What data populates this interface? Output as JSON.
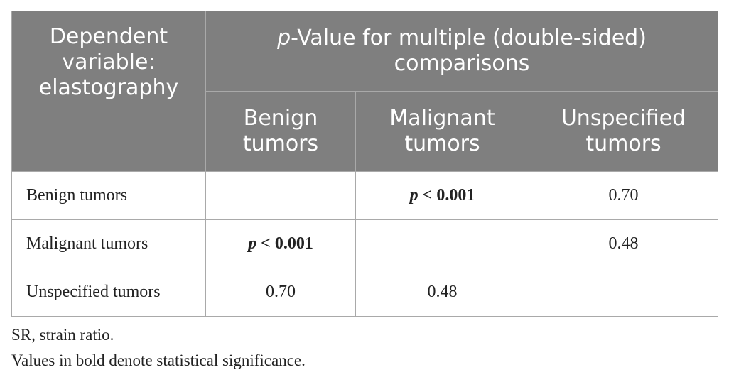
{
  "table": {
    "header": {
      "dependent_label": "Dependent variable: elastography",
      "pvalue_label_italic": "p",
      "pvalue_label_rest": "-Value for multiple (double-sided) comparisons",
      "columns": [
        "Benign tumors",
        "Malignant tumors",
        "Unspecified tumors"
      ]
    },
    "rows": [
      {
        "label": "Benign tumors",
        "cells": [
          "",
          "p < 0.001",
          "0.70"
        ]
      },
      {
        "label": "Malignant tumors",
        "cells": [
          "p < 0.001",
          "",
          "0.48"
        ]
      },
      {
        "label": "Unspecified tumors",
        "cells": [
          "0.70",
          "0.48",
          ""
        ]
      }
    ]
  },
  "footnotes": {
    "abbreviation": "SR, strain ratio.",
    "significance": "Values in bold denote statistical significance."
  }
}
